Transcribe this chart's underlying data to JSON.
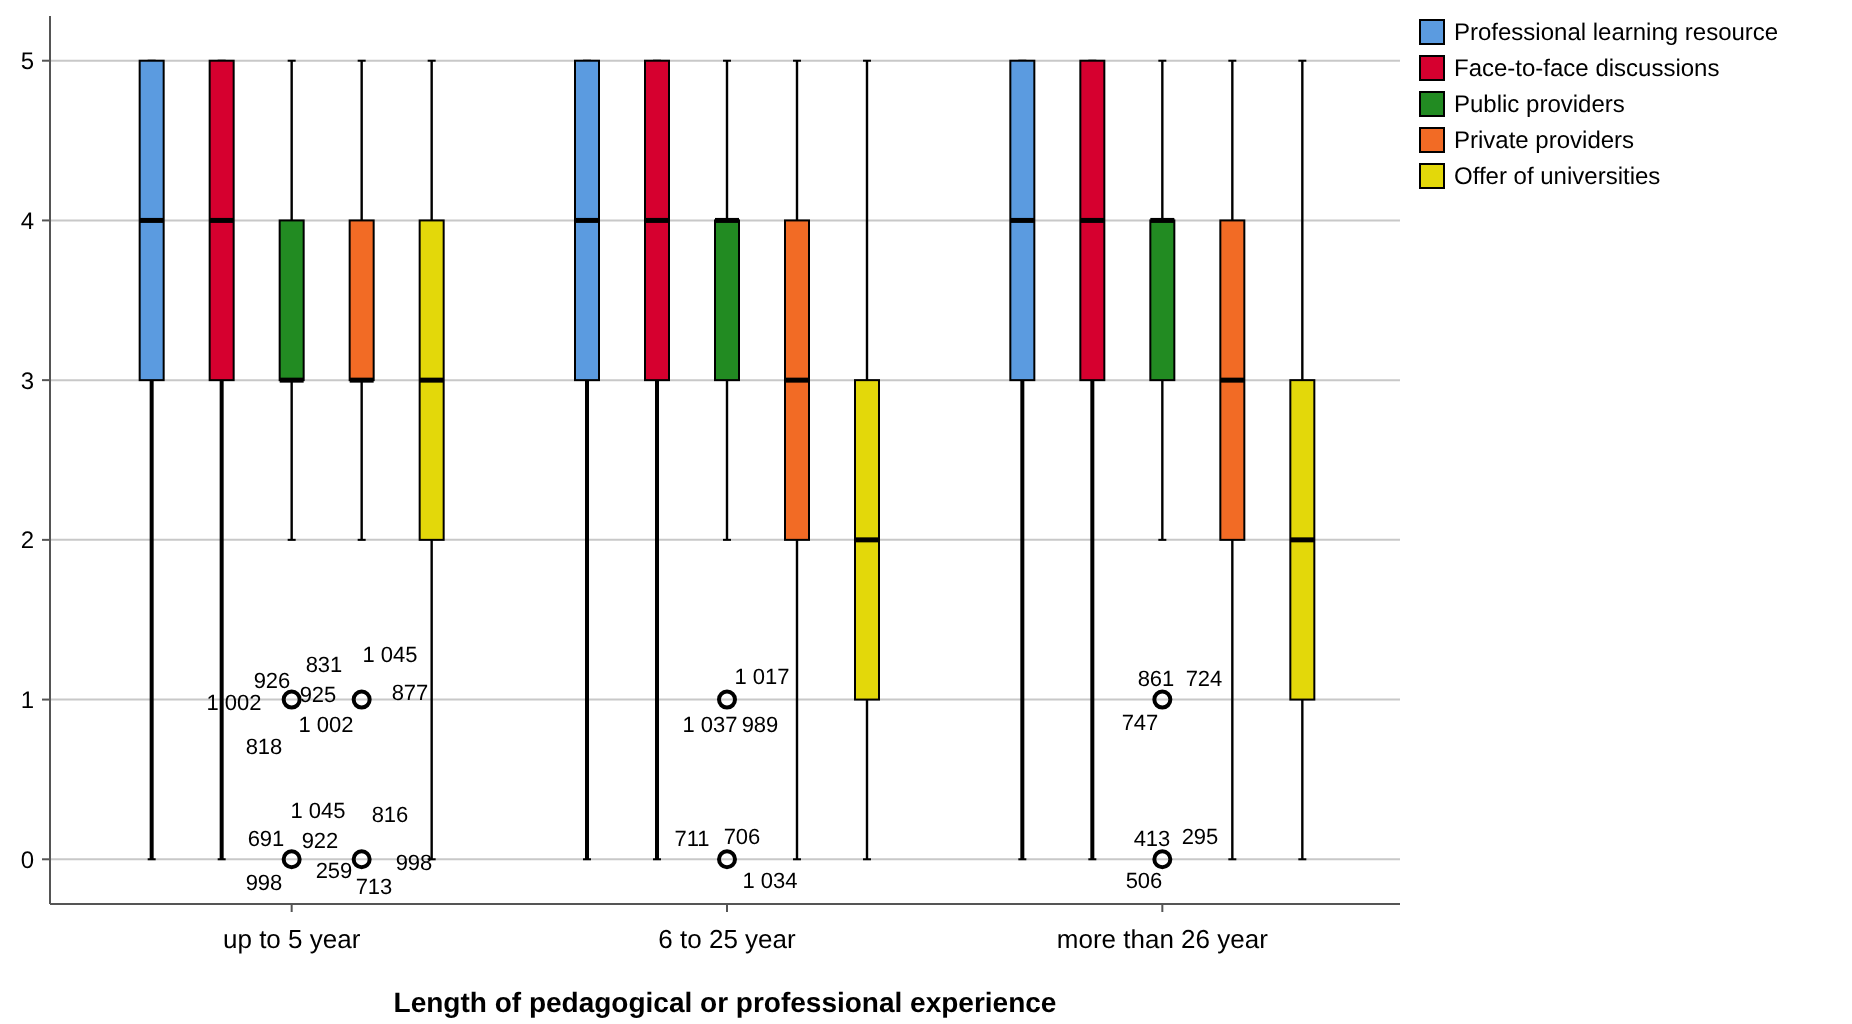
{
  "chart_data": {
    "type": "box",
    "xlabel": "Length of pedagogical or professional experience",
    "categories": [
      "up to 5 year",
      "6 to 25 year",
      "more than 26 year"
    ],
    "ylim": [
      -0.28,
      5.28
    ],
    "yticks": [
      0,
      1,
      2,
      3,
      4,
      5
    ],
    "grid": "y",
    "legend": "top right",
    "series": [
      {
        "name": "Professional learning resource",
        "color": "#5b9be0",
        "boxes": [
          {
            "low": 0,
            "q1": 3,
            "median": 4,
            "q3": 5,
            "high": 5
          },
          {
            "low": 0,
            "q1": 3,
            "median": 4,
            "q3": 5,
            "high": 5
          },
          {
            "low": 0,
            "q1": 3,
            "median": 4,
            "q3": 5,
            "high": 5
          }
        ]
      },
      {
        "name": "Face-to-face discussions",
        "color": "#d6002f",
        "boxes": [
          {
            "low": 0,
            "q1": 3,
            "median": 4,
            "q3": 5,
            "high": 5
          },
          {
            "low": 0,
            "q1": 3,
            "median": 4,
            "q3": 5,
            "high": 5
          },
          {
            "low": 0,
            "q1": 3,
            "median": 4,
            "q3": 5,
            "high": 5
          }
        ]
      },
      {
        "name": "Public providers",
        "color": "#228b22",
        "boxes": [
          {
            "low": 2,
            "q1": 3,
            "median": 3,
            "q3": 4,
            "high": 5,
            "outliers": [
              1,
              0
            ]
          },
          {
            "low": 2,
            "q1": 3,
            "median": 4,
            "q3": 4,
            "high": 5,
            "outliers": [
              1,
              0
            ]
          },
          {
            "low": 2,
            "q1": 3,
            "median": 4,
            "q3": 4,
            "high": 5,
            "outliers": [
              1,
              0
            ]
          }
        ]
      },
      {
        "name": "Private providers",
        "color": "#f26b25",
        "boxes": [
          {
            "low": 2,
            "q1": 3,
            "median": 3,
            "q3": 4,
            "high": 5,
            "outliers": [
              1,
              0
            ]
          },
          {
            "low": 0,
            "q1": 2,
            "median": 3,
            "q3": 4,
            "high": 5
          },
          {
            "low": 0,
            "q1": 2,
            "median": 3,
            "q3": 4,
            "high": 5
          }
        ]
      },
      {
        "name": "Offer of universities",
        "color": "#e3d80a",
        "boxes": [
          {
            "low": 0,
            "q1": 2,
            "median": 3,
            "q3": 4,
            "high": 5
          },
          {
            "low": 0,
            "q1": 1,
            "median": 2,
            "q3": 3,
            "high": 5
          },
          {
            "low": 0,
            "q1": 1,
            "median": 2,
            "q3": 3,
            "high": 5
          }
        ]
      }
    ],
    "annotations": [
      "926",
      "831",
      "1 045",
      "1 002",
      "925",
      "877",
      "1 002",
      "818",
      "1 045",
      "816",
      "691",
      "922",
      "998",
      "259",
      "713",
      "998",
      "1 017",
      "1 037",
      "989",
      "711",
      "706",
      "1 034",
      "861",
      "724",
      "747",
      "413",
      "295",
      "506"
    ]
  }
}
